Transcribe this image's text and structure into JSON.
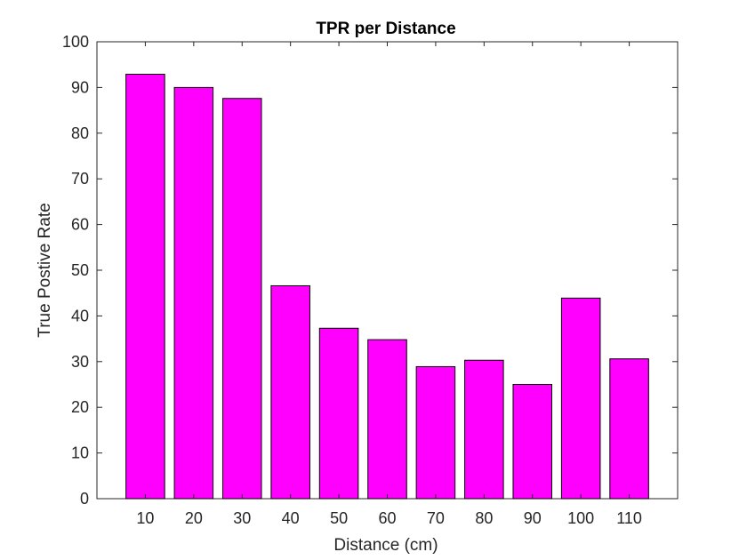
{
  "chart_data": {
    "type": "bar",
    "title": "TPR per Distance",
    "xlabel": "Distance (cm)",
    "ylabel": "True Postive Rate",
    "categories": [
      "10",
      "20",
      "30",
      "40",
      "50",
      "60",
      "70",
      "80",
      "90",
      "100",
      "110"
    ],
    "values": [
      92.9,
      90.0,
      87.6,
      46.6,
      37.3,
      34.8,
      28.9,
      30.3,
      25.0,
      43.9,
      30.6
    ],
    "ylim": [
      0,
      100
    ],
    "yticks": [
      0,
      10,
      20,
      30,
      40,
      50,
      60,
      70,
      80,
      90,
      100
    ],
    "grid": false,
    "legend": "none",
    "colors": {
      "bar": "#ff00ff",
      "edge": "#000000",
      "axis": "#262626"
    }
  }
}
